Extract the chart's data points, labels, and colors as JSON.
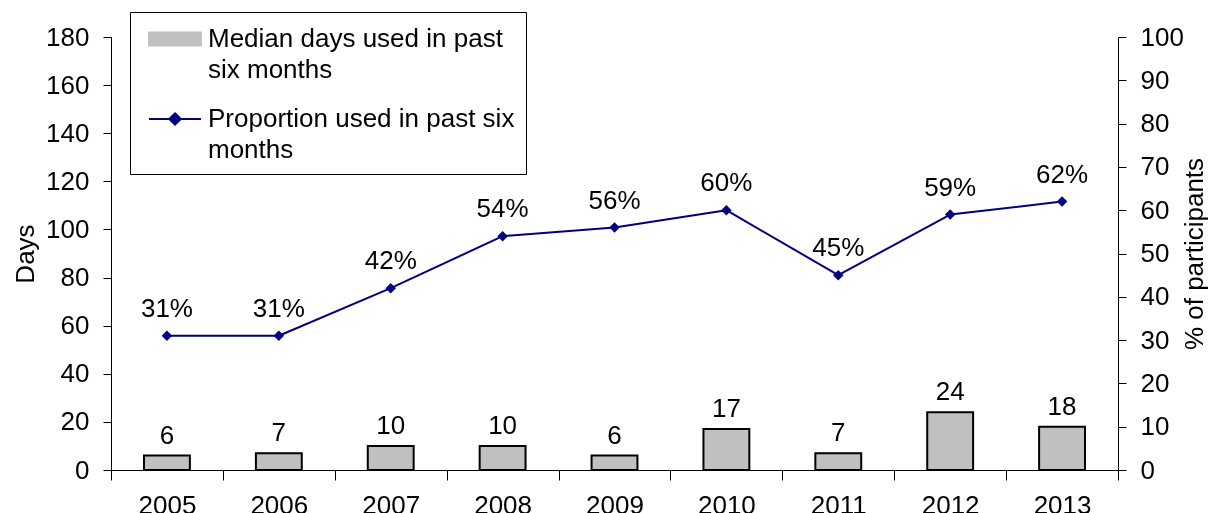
{
  "chart_data": {
    "type": "bar",
    "categories": [
      "2005",
      "2006",
      "2007",
      "2008",
      "2009",
      "2010",
      "2011",
      "2012",
      "2013"
    ],
    "ylabel": "Days",
    "y2label": "% of participants",
    "ylim": [
      0,
      180
    ],
    "yticks": [
      0,
      20,
      40,
      60,
      80,
      100,
      120,
      140,
      160,
      180
    ],
    "y2lim": [
      0,
      100
    ],
    "y2ticks": [
      0,
      10,
      20,
      30,
      40,
      50,
      60,
      70,
      80,
      90,
      100
    ],
    "legend": "top left",
    "marker": "diamond",
    "series": [
      {
        "name": "Median days used in past six months",
        "color": "#c0c0c0",
        "values": [
          6,
          7,
          10,
          10,
          6,
          17,
          7,
          24,
          18
        ],
        "value_labels": [
          "6",
          "7",
          "10",
          "10",
          "6",
          "17",
          "7",
          "24",
          "18"
        ]
      },
      {
        "name": "Proportion used in past six months",
        "type": "line",
        "axis": "y2",
        "color": "#000080",
        "values": [
          31,
          31,
          42,
          54,
          56,
          60,
          45,
          59,
          62
        ],
        "value_labels": [
          "31%",
          "31%",
          "42%",
          "54%",
          "56%",
          "60%",
          "45%",
          "59%",
          "62%"
        ]
      }
    ]
  }
}
